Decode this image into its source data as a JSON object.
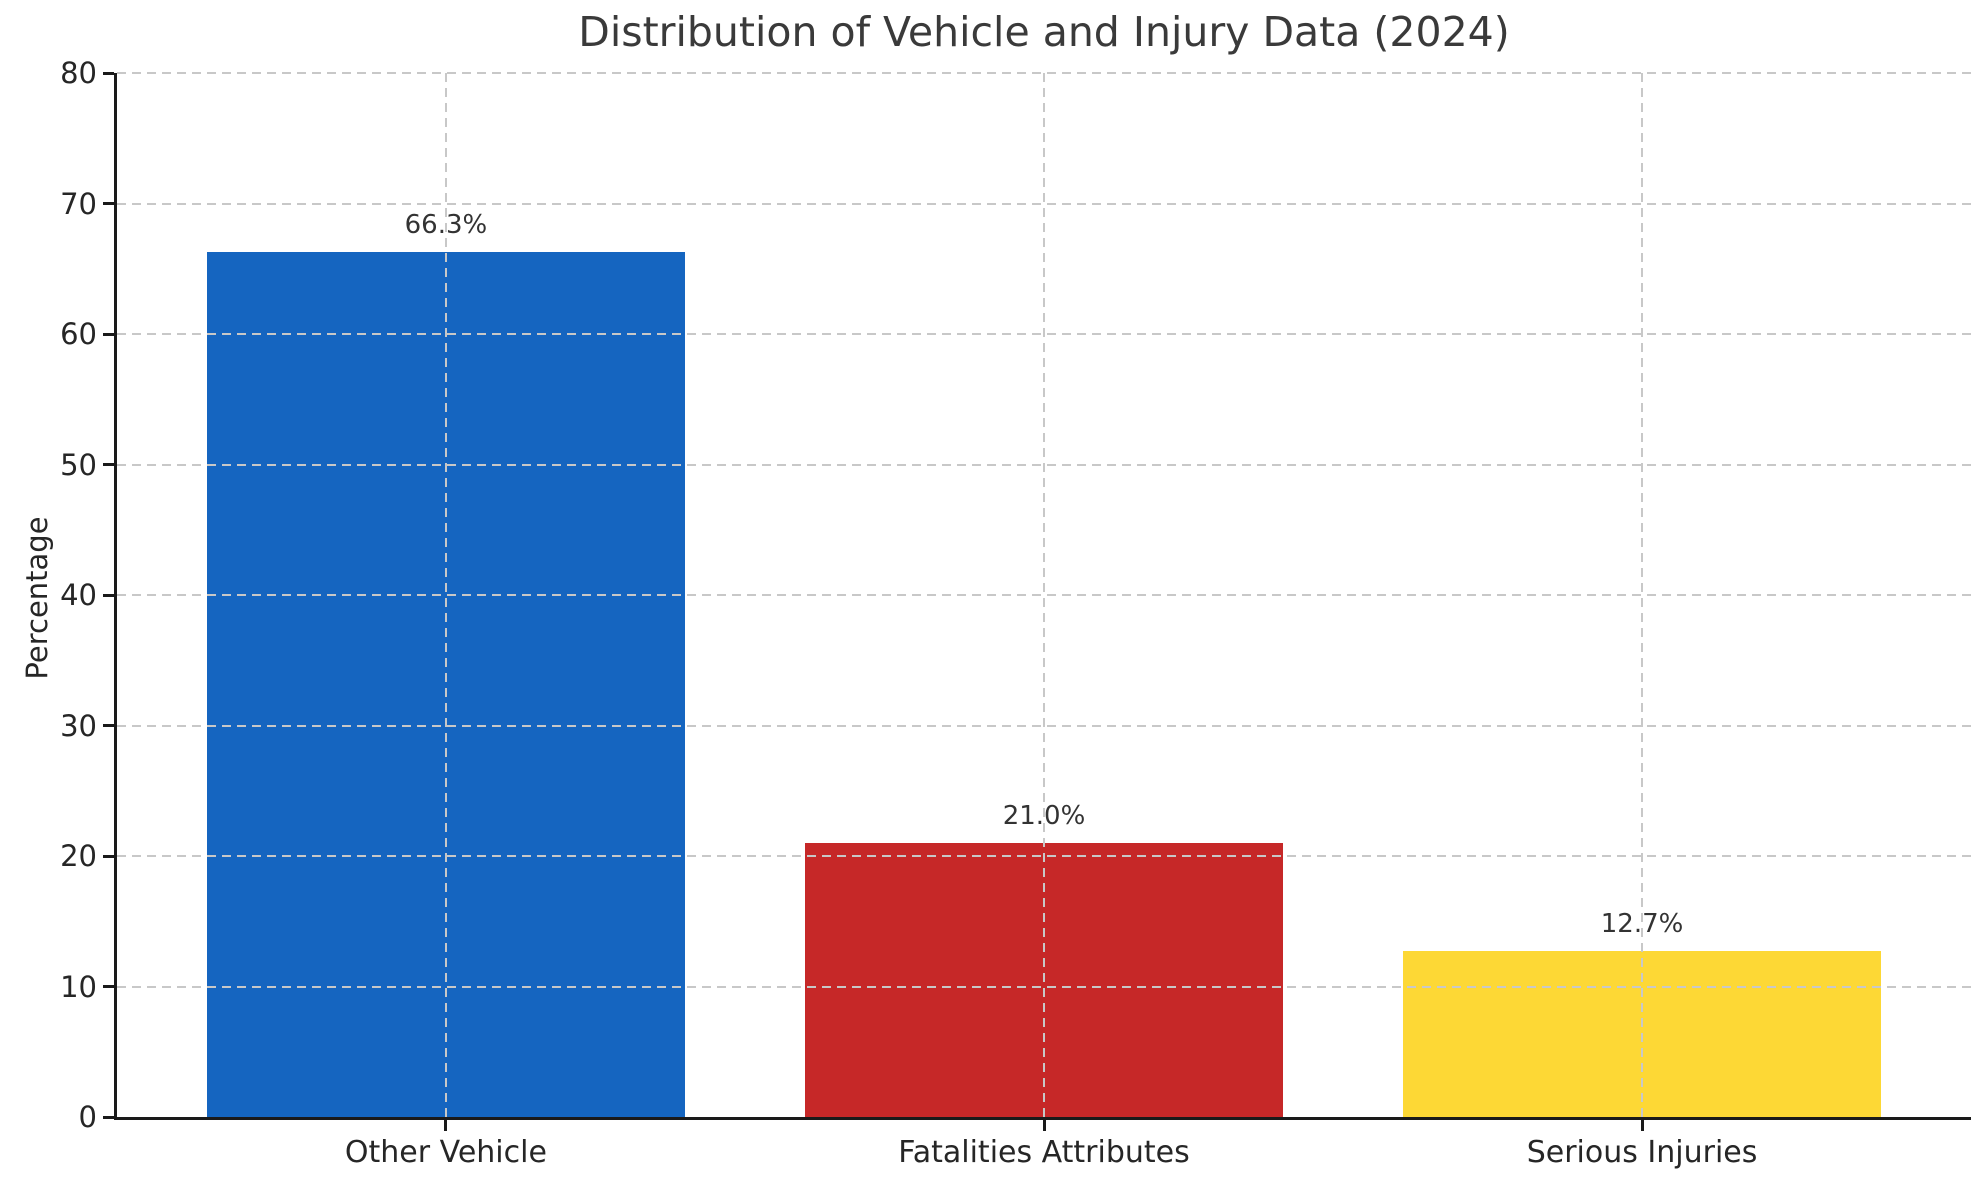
{
  "chart_data": {
    "type": "bar",
    "title": "Distribution of Vehicle and Injury Data (2024)",
    "xlabel": "",
    "ylabel": "Percentage",
    "categories": [
      "Other Vehicle",
      "Fatalities Attributes",
      "Serious Injuries"
    ],
    "values": [
      66.3,
      21.0,
      12.7
    ],
    "value_labels": [
      "66.3%",
      "21.0%",
      "12.7%"
    ],
    "bar_colors": [
      "#1565C0",
      "#C62828",
      "#FDD835"
    ],
    "ylim": [
      0,
      80
    ],
    "yticks": [
      "0",
      "10",
      "20",
      "30",
      "40",
      "50",
      "60",
      "70",
      "80"
    ],
    "grid": "dashed gridlines on both axes, drawn above bars",
    "legend": "none"
  },
  "style": {
    "background_color": "#ffffff",
    "grid_color": "#c8c8c8",
    "axis_color": "#1a1a1a",
    "text_color": "#333333"
  }
}
